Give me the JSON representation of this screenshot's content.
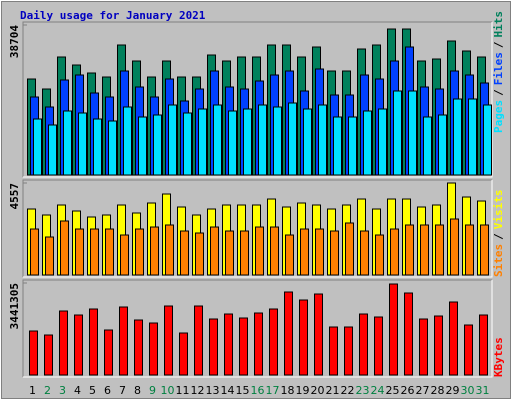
{
  "chart_data": [
    {
      "type": "bar",
      "title": "Daily usage for January 2021",
      "title_color": "#0000c0",
      "legend_separator": "/",
      "ylim": [
        0,
        38704
      ],
      "yticks": [
        38704
      ],
      "series": [
        {
          "name": "Pages",
          "color": "#00e0ff",
          "values": [
            14450,
            12902,
            16514,
            15998,
            14450,
            13934,
            17546,
            14966,
            15482,
            18062,
            15998,
            17030,
            18062,
            16514,
            17030,
            18062,
            17546,
            18578,
            17030,
            18062,
            14966,
            14966,
            16514,
            17030,
            21674,
            21674,
            14966,
            15482,
            19610,
            19610,
            18062
          ]
        },
        {
          "name": "Files",
          "color": "#0040ff",
          "values": [
            20126,
            17546,
            24513,
            25803,
            21158,
            20126,
            26835,
            22706,
            20126,
            24771,
            19094,
            22190,
            26835,
            22706,
            22190,
            24254,
            25803,
            26835,
            21674,
            27351,
            20642,
            20642,
            25803,
            24771,
            29415,
            33028,
            22706,
            22190,
            26835,
            25803,
            23739
          ]
        },
        {
          "name": "Hits",
          "color": "#00805c",
          "values": [
            24771,
            22190,
            30448,
            28383,
            26319,
            25287,
            33544,
            29415,
            25287,
            29415,
            25287,
            25287,
            30963,
            29415,
            30448,
            30448,
            33544,
            33544,
            30448,
            33028,
            26835,
            26835,
            32512,
            33544,
            37672,
            37672,
            29415,
            29931,
            34576,
            31996,
            30448
          ]
        }
      ]
    },
    {
      "type": "bar",
      "legend_separator": "/",
      "ylim": [
        0,
        4557
      ],
      "yticks": [
        4557
      ],
      "series": [
        {
          "name": "Sites",
          "color": "#ff8000",
          "values": [
            2278,
            1882,
            2675,
            2278,
            2278,
            2278,
            1981,
            2278,
            2377,
            2477,
            2179,
            2080,
            2377,
            2179,
            2179,
            2377,
            2377,
            1981,
            2278,
            2278,
            2179,
            2576,
            2179,
            1981,
            2278,
            2477,
            2477,
            2477,
            2774,
            2477,
            2477
          ]
        },
        {
          "name": "Visits",
          "color": "#ffff00",
          "values": [
            3269,
            2972,
            3467,
            3170,
            2873,
            2972,
            3467,
            3071,
            3566,
            4012,
            3368,
            2972,
            3269,
            3467,
            3467,
            3467,
            3764,
            3368,
            3566,
            3467,
            3269,
            3467,
            3764,
            3269,
            3764,
            3764,
            3368,
            3467,
            4557,
            3863,
            3665
          ]
        }
      ]
    },
    {
      "type": "bar",
      "ylim": [
        0,
        3441305
      ],
      "yticks": [
        3441305
      ],
      "categories": [
        "1",
        "2",
        "3",
        "4",
        "5",
        "6",
        "7",
        "8",
        "9",
        "10",
        "11",
        "12",
        "13",
        "14",
        "15",
        "16",
        "17",
        "18",
        "19",
        "20",
        "21",
        "22",
        "23",
        "24",
        "25",
        "26",
        "27",
        "28",
        "29",
        "30",
        "31"
      ],
      "category_colors": [
        "#000000",
        "#008040",
        "#008040",
        "#000000",
        "#000000",
        "#000000",
        "#000000",
        "#000000",
        "#008040",
        "#008040",
        "#000000",
        "#000000",
        "#000000",
        "#000000",
        "#000000",
        "#008040",
        "#008040",
        "#000000",
        "#000000",
        "#000000",
        "#000000",
        "#000000",
        "#008040",
        "#008040",
        "#000000",
        "#000000",
        "#000000",
        "#000000",
        "#000000",
        "#008040",
        "#008040"
      ],
      "series": [
        {
          "name": "KBytes",
          "color": "#ff0000",
          "values": [
            1645842,
            1496220,
            2393952,
            2244330,
            2468763,
            1683248,
            2543574,
            2057303,
            1945086,
            2580980,
            1571031,
            2580980,
            2094708,
            2281736,
            2132114,
            2319142,
            2468763,
            3104657,
            2805413,
            3029846,
            1795464,
            1795464,
            2281736,
            2169519,
            3403901,
            3067251,
            2094708,
            2206925,
            2730602,
            1870275,
            2244330
          ]
        }
      ]
    }
  ]
}
